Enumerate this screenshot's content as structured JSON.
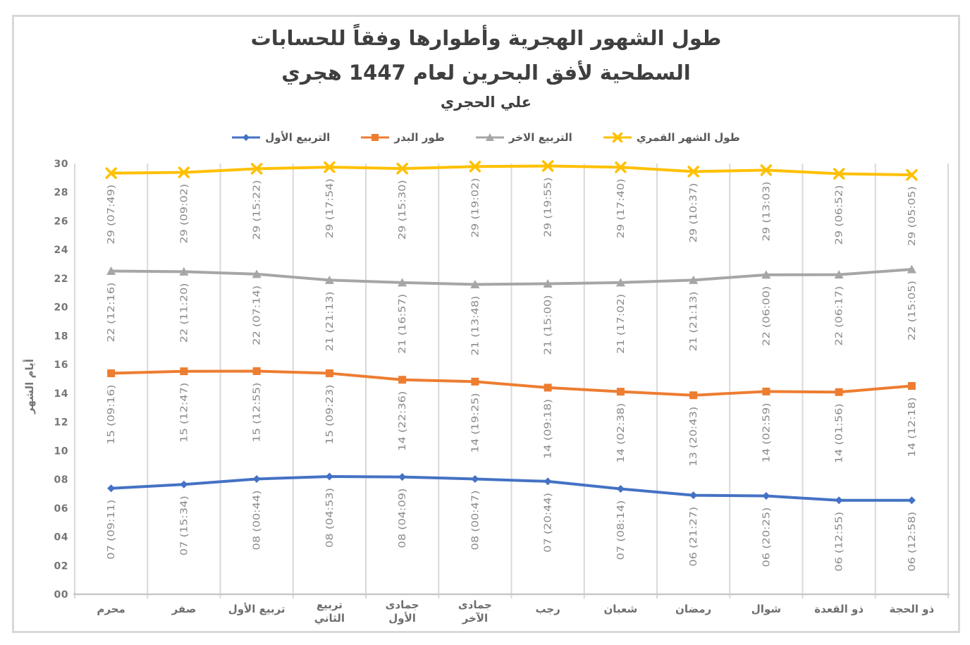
{
  "title": {
    "line1": "طول الشهور الهجرية وأطوارها وفقاً للحسابات",
    "line2": "السطحية لأفق البحرين لعام 1447 هجري",
    "line3": "علي الحجري"
  },
  "colors": {
    "first_quarter_blue": "#4472C4",
    "full_moon_orange": "#ED7D31",
    "last_quarter_gray": "#A6A6A6",
    "lunar_month_yellow": "#FFC000",
    "gridline": "#D9D9D9",
    "axis_line": "#C8C8C8",
    "frame_border": "#D8D8D8",
    "title_text": "#3F3F3F",
    "data_label_text": "#8A8A8A",
    "tick_text": "#767676"
  },
  "chart_data": {
    "type": "line",
    "title": "طول الشهور الهجرية وأطوارها وفقاً للحسابات السطحية لأفق البحرين لعام 1447 هجري",
    "subtitle": "علي الحجري",
    "xlabel": "",
    "ylabel": "أيام الشهر",
    "ylim": [
      0,
      30
    ],
    "ytick_step": 2,
    "ytick_labels": [
      "00",
      "02",
      "04",
      "06",
      "08",
      "10",
      "12",
      "14",
      "16",
      "18",
      "20",
      "22",
      "24",
      "26",
      "28",
      "30"
    ],
    "grid": "vertical-only",
    "legend_position": "top",
    "categories": [
      "محرم",
      "صفر",
      "تربيع الأول",
      "تربيع الثاني",
      "جمادى الأول",
      "جمادى الآخر",
      "رجب",
      "شعبان",
      "رمضان",
      "شوال",
      "ذو القعدة",
      "ذو الحجة"
    ],
    "category_label_lines": [
      [
        "محرم"
      ],
      [
        "صفر"
      ],
      [
        "تربيع الأول"
      ],
      [
        "تربيع",
        "الثاني"
      ],
      [
        "جمادى",
        "الأول"
      ],
      [
        "جمادى",
        "الآخر"
      ],
      [
        "رجب"
      ],
      [
        "شعبان"
      ],
      [
        "رمضان"
      ],
      [
        "شوال"
      ],
      [
        "ذو القعدة"
      ],
      [
        "ذو الحجة"
      ]
    ],
    "series": [
      {
        "name": "التربيع الأول",
        "marker": "diamond",
        "color": "#4472C4",
        "values": [
          7.38,
          7.65,
          8.03,
          8.2,
          8.17,
          8.03,
          7.86,
          7.34,
          6.89,
          6.85,
          6.54,
          6.54
        ],
        "labels": [
          "07 (09:11)",
          "07 (15:34)",
          "08 (00:44)",
          "08 (04:53)",
          "08 (04:09)",
          "08 (00:47)",
          "07 (20:44)",
          "07 (08:14)",
          "06 (21:27)",
          "06 (20:25)",
          "06 (12:55)",
          "06 (12:58)"
        ]
      },
      {
        "name": "طور البدر",
        "marker": "square",
        "color": "#ED7D31",
        "values": [
          15.39,
          15.53,
          15.54,
          15.39,
          14.94,
          14.81,
          14.39,
          14.11,
          13.86,
          14.12,
          14.08,
          14.51
        ],
        "labels": [
          "15 (09:16)",
          "15 (12:47)",
          "15 (12:55)",
          "15 (09:23)",
          "14 (22:36)",
          "14 (19:25)",
          "14 (09:18)",
          "14 (02:38)",
          "13 (20:43)",
          "14 (02:59)",
          "14 (01:56)",
          "14 (12:18)"
        ]
      },
      {
        "name": "التربيع الاخر",
        "marker": "triangle",
        "color": "#A6A6A6",
        "values": [
          22.51,
          22.47,
          22.3,
          21.88,
          21.71,
          21.58,
          21.63,
          21.71,
          21.88,
          22.25,
          22.26,
          22.63
        ],
        "labels": [
          "22 (12:16)",
          "22 (11:20)",
          "22 (07:14)",
          "21 (21:13)",
          "21 (16:57)",
          "21 (13:48)",
          "21 (15:00)",
          "21 (17:02)",
          "21 (21:13)",
          "22 (06:00)",
          "22 (06:17)",
          "22 (15:05)"
        ]
      },
      {
        "name": "طول الشهر القمري",
        "marker": "x",
        "color": "#FFC000",
        "values": [
          29.33,
          29.38,
          29.64,
          29.75,
          29.65,
          29.79,
          29.83,
          29.74,
          29.44,
          29.54,
          29.29,
          29.21
        ],
        "labels": [
          "29 (07:49)",
          "29 (09:02)",
          "29 (15:22)",
          "29 (17:54)",
          "29 (15:30)",
          "29 (19:02)",
          "29 (19:55)",
          "29 (17:40)",
          "29 (10:37)",
          "29 (13:03)",
          "29 (06:52)",
          "29 (05:05)"
        ]
      }
    ]
  }
}
